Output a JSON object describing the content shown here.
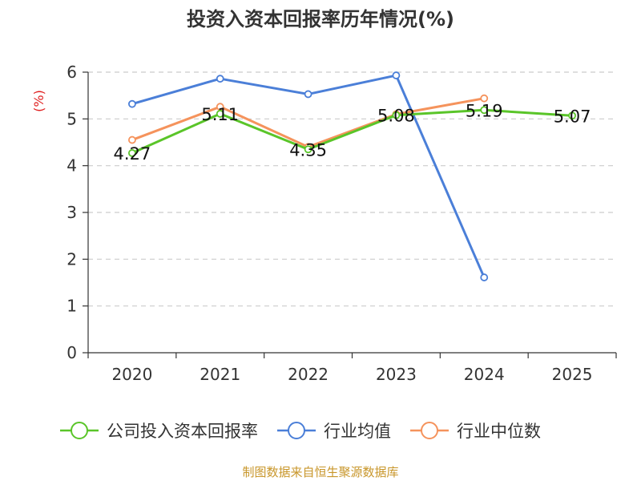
{
  "chart_data": {
    "type": "line",
    "title": "投资入资本回报率历年情况(%)",
    "ylabel": "(%)",
    "xlabel": "",
    "categories": [
      "2020",
      "2021",
      "2022",
      "2023",
      "2024",
      "2025"
    ],
    "ylim": [
      0,
      6
    ],
    "yticks": [
      0,
      1,
      2,
      3,
      4,
      5,
      6
    ],
    "grid": true,
    "legend_position": "bottom",
    "series": [
      {
        "name": "公司投入资本回报率",
        "color": "#5ac529",
        "values": [
          4.27,
          5.11,
          4.35,
          5.08,
          5.19,
          5.07
        ],
        "labels": [
          "4.27",
          "5.11",
          "4.35",
          "5.08",
          "5.19",
          "5.07"
        ]
      },
      {
        "name": "行业均值",
        "color": "#4b7fd8",
        "values": [
          5.32,
          5.86,
          5.53,
          5.93,
          1.61,
          null
        ]
      },
      {
        "name": "行业中位数",
        "color": "#f5935c",
        "values": [
          4.55,
          5.26,
          4.4,
          5.1,
          5.44,
          null
        ]
      }
    ]
  },
  "source_note": "制图数据来自恒生聚源数据库"
}
